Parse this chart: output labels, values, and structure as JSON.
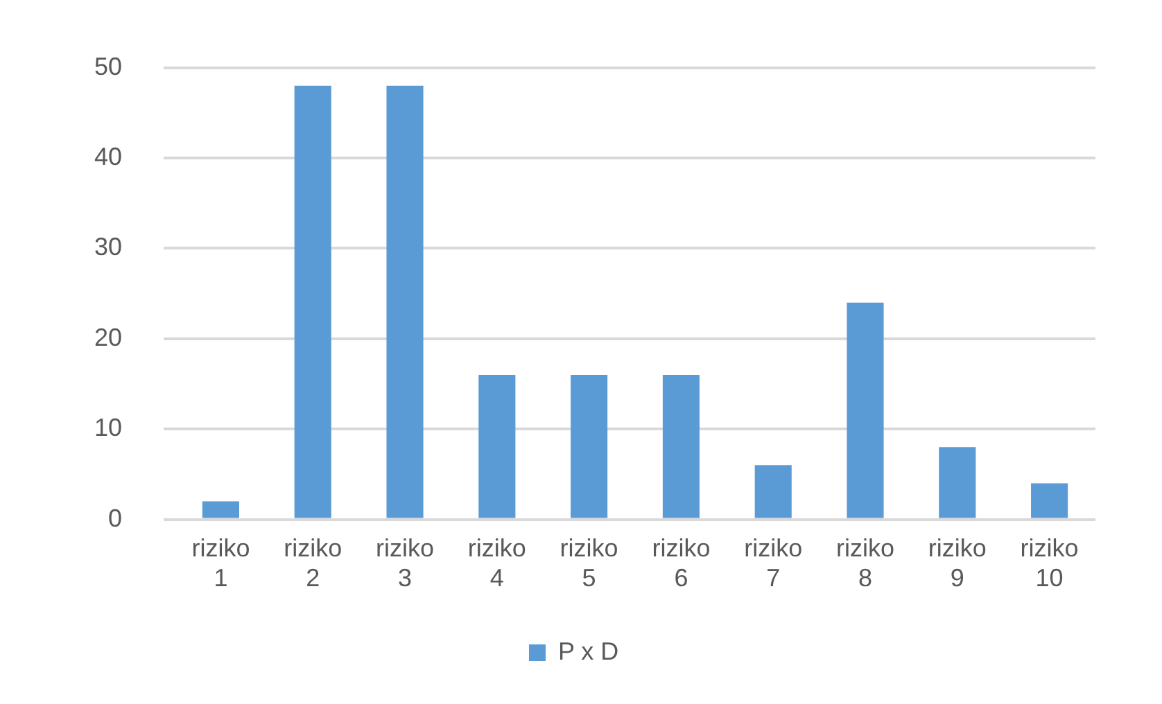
{
  "chart_data": {
    "type": "bar",
    "categories": [
      "riziko 1",
      "riziko 2",
      "riziko 3",
      "riziko 4",
      "riziko 5",
      "riziko 6",
      "riziko 7",
      "riziko 8",
      "riziko 9",
      "riziko 10"
    ],
    "series": [
      {
        "name": "P x D",
        "color": "#5b9bd5",
        "values": [
          2,
          48,
          48,
          16,
          16,
          16,
          6,
          24,
          8,
          4
        ]
      }
    ],
    "ylim": [
      0,
      50
    ],
    "yticks": [
      0,
      10,
      20,
      30,
      40,
      50
    ],
    "grid": "y",
    "legend": "bottom"
  }
}
